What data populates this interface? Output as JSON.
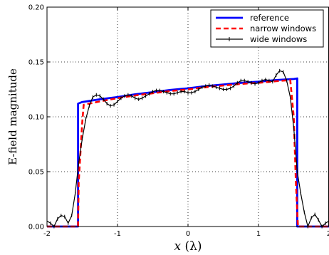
{
  "chart_data": {
    "type": "line",
    "title": "",
    "xlabel_var": "x",
    "xlabel_unit": "(λ)",
    "ylabel": "E-field magnitude",
    "xlim": [
      -2,
      2
    ],
    "ylim": [
      0,
      0.2
    ],
    "xticks": [
      -2,
      -1,
      0,
      1,
      2
    ],
    "xtick_labels": [
      "-2",
      "-1",
      "0",
      "1",
      "2"
    ],
    "yticks": [
      0,
      0.05,
      0.1,
      0.15,
      0.2
    ],
    "ytick_labels": [
      "0.00",
      "0.05",
      "0.10",
      "0.15",
      "0.20"
    ],
    "grid": true,
    "legend_position": "top-right",
    "series": [
      {
        "name": "reference",
        "color": "#0000ff",
        "style": "solid",
        "x": [
          -2.0,
          -1.56,
          -1.56,
          -1.5,
          -1.25,
          -1.0,
          -0.75,
          -0.5,
          -0.25,
          0.0,
          0.25,
          0.5,
          0.75,
          1.0,
          1.25,
          1.5,
          1.55,
          1.55,
          2.0
        ],
        "y": [
          0.0,
          0.0,
          0.112,
          0.1135,
          0.116,
          0.118,
          0.1205,
          0.1225,
          0.1245,
          0.126,
          0.128,
          0.1295,
          0.131,
          0.132,
          0.1335,
          0.1345,
          0.135,
          0.0,
          0.0
        ]
      },
      {
        "name": "narrow windows",
        "color": "#ff0000",
        "style": "dashed",
        "x": [
          -2.0,
          -1.56,
          -1.55,
          -1.5,
          -1.48,
          -1.25,
          -1.0,
          -0.75,
          -0.5,
          -0.25,
          0.0,
          0.25,
          0.5,
          0.75,
          1.0,
          1.25,
          1.45,
          1.5,
          1.53,
          1.56,
          2.0
        ],
        "y": [
          0.0,
          0.0,
          0.04,
          0.095,
          0.111,
          0.114,
          0.117,
          0.1195,
          0.1215,
          0.1235,
          0.125,
          0.127,
          0.1285,
          0.13,
          0.131,
          0.1325,
          0.1335,
          0.1,
          0.04,
          0.0,
          0.0
        ]
      },
      {
        "name": "wide windows",
        "color": "#000000",
        "style": "solid-markers",
        "x": [
          -2.0,
          -1.95,
          -1.9,
          -1.85,
          -1.8,
          -1.75,
          -1.7,
          -1.65,
          -1.6,
          -1.55,
          -1.5,
          -1.45,
          -1.4,
          -1.35,
          -1.3,
          -1.25,
          -1.2,
          -1.15,
          -1.1,
          -1.05,
          -1.0,
          -0.95,
          -0.9,
          -0.85,
          -0.8,
          -0.75,
          -0.7,
          -0.65,
          -0.6,
          -0.55,
          -0.5,
          -0.45,
          -0.4,
          -0.35,
          -0.3,
          -0.25,
          -0.2,
          -0.15,
          -0.1,
          -0.05,
          0.0,
          0.05,
          0.1,
          0.15,
          0.2,
          0.25,
          0.3,
          0.35,
          0.4,
          0.45,
          0.5,
          0.55,
          0.6,
          0.65,
          0.7,
          0.75,
          0.8,
          0.85,
          0.9,
          0.95,
          1.0,
          1.05,
          1.1,
          1.15,
          1.2,
          1.25,
          1.3,
          1.35,
          1.4,
          1.45,
          1.5,
          1.55,
          1.6,
          1.65,
          1.7,
          1.75,
          1.8,
          1.85,
          1.9,
          1.95,
          2.0
        ],
        "y": [
          0.005,
          0.003,
          0.0,
          0.007,
          0.01,
          0.009,
          0.003,
          0.01,
          0.03,
          0.058,
          0.08,
          0.098,
          0.11,
          0.118,
          0.12,
          0.119,
          0.116,
          0.112,
          0.11,
          0.111,
          0.114,
          0.117,
          0.119,
          0.12,
          0.119,
          0.117,
          0.116,
          0.117,
          0.119,
          0.121,
          0.123,
          0.124,
          0.124,
          0.123,
          0.122,
          0.121,
          0.121,
          0.122,
          0.123,
          0.123,
          0.122,
          0.122,
          0.123,
          0.125,
          0.127,
          0.128,
          0.129,
          0.128,
          0.127,
          0.126,
          0.125,
          0.125,
          0.126,
          0.128,
          0.131,
          0.133,
          0.133,
          0.132,
          0.131,
          0.13,
          0.131,
          0.133,
          0.134,
          0.133,
          0.132,
          0.138,
          0.142,
          0.141,
          0.133,
          0.118,
          0.09,
          0.05,
          0.03,
          0.013,
          0.0,
          0.008,
          0.011,
          0.006,
          0.0,
          0.003,
          0.005
        ]
      }
    ]
  }
}
